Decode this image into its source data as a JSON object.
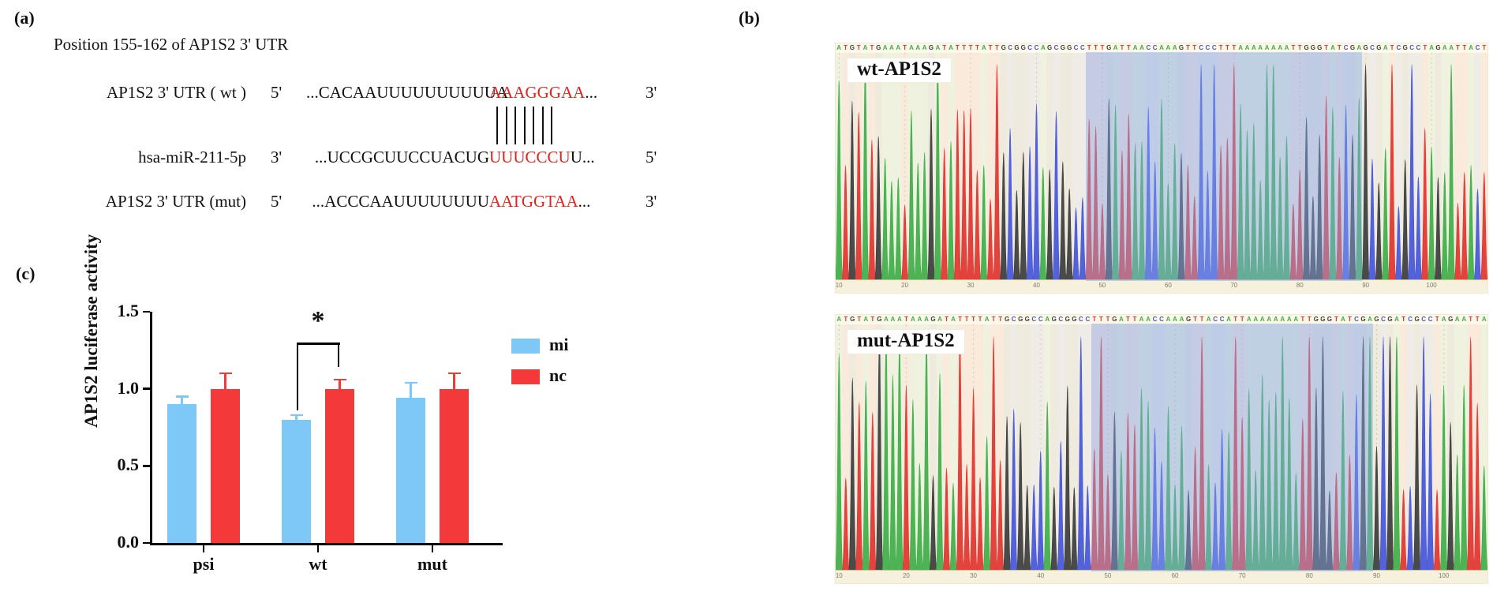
{
  "panel_a": {
    "tag": "(a)",
    "title": "Position 155-162 of AP1S2 3' UTR",
    "pair_bars": 7,
    "red_color": "#e8201d",
    "rows": [
      {
        "name": "AP1S2 3' UTR ( wt )",
        "left_end": "5'",
        "seq_pre": "...CACAAUUUUUUUUUUA",
        "seq_red": "AAAGGGAA",
        "seq_post": "...",
        "right_end": "3'"
      },
      {
        "name": "hsa-miR-211-5p",
        "left_end": "3'",
        "seq_pre": "...UCCGCUUCCUACUG",
        "seq_red": "UUUCCCU",
        "seq_post": "U...",
        "right_end": "5'"
      },
      {
        "name": "AP1S2 3' UTR (mut)",
        "left_end": "5'",
        "seq_pre": "...ACCCAAUUUUUUUU",
        "seq_red": "AATGGTAA",
        "seq_post": "...",
        "right_end": "3'"
      }
    ]
  },
  "panel_b": {
    "tag": "(b)",
    "base_colors": {
      "A": "#3fae49",
      "T": "#e0352f",
      "G": "#3c3c3c",
      "C": "#4656d7"
    },
    "highlight_color": "rgba(132,166,233,0.45)",
    "chromatograms": [
      {
        "name": "wt-AP1S2",
        "sequence": "ATGTATGAAATAAAGATATTTTATTGCGGCCAGCGGCCTTTGATTAACCAAAGTTCCCTTTAAAAAAAATTGGGTATCGAGCGATCGCCTAGAATTACT",
        "highlight_start": 38,
        "highlight_len": 42,
        "axis_ticks": [
          10,
          20,
          30,
          40,
          50,
          60,
          70,
          80,
          90,
          100
        ]
      },
      {
        "name": "mut-AP1S2",
        "sequence": "ATGTATGAAATAAAGATATTTTATTGCGGCCAGCGGCCTTTGATTAACCAAAGTTACCATTAAAAAAAATTGGGTATCGAGCGATCGCCTAGAATTA",
        "highlight_start": 38,
        "highlight_len": 42,
        "axis_ticks": [
          10,
          20,
          30,
          40,
          50,
          60,
          70,
          80,
          90,
          100
        ]
      }
    ]
  },
  "panel_c": {
    "tag": "(c)"
  },
  "chart_data": {
    "type": "bar",
    "title": "",
    "categories": [
      "psi",
      "wt",
      "mut"
    ],
    "series": [
      {
        "name": "mi",
        "color": "#7dc8f7",
        "values": [
          0.9,
          0.8,
          0.94
        ],
        "errors_up": [
          0.05,
          0.03,
          0.1
        ]
      },
      {
        "name": "nc",
        "color": "#f4393b",
        "values": [
          1.0,
          1.0,
          1.0
        ],
        "errors_up": [
          0.1,
          0.06,
          0.1
        ]
      }
    ],
    "xlabel": "",
    "ylabel": "AP1S2 luciferase activity",
    "yticks": [
      "0.0",
      "0.5",
      "1.0",
      "1.5"
    ],
    "ylim": [
      0,
      1.5
    ],
    "grid": false,
    "legend_position": "right",
    "significance": {
      "category": "wt",
      "between": [
        "mi",
        "nc"
      ],
      "symbol": "*"
    }
  }
}
